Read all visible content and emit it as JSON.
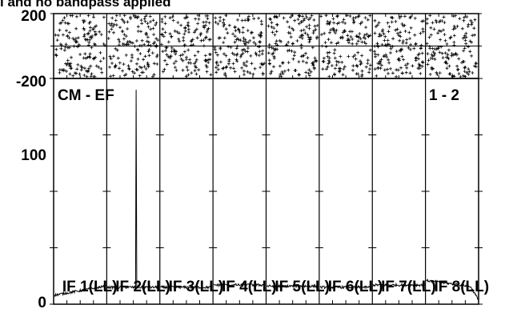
{
  "chart_data": {
    "type": "line",
    "title": "l and no bandpass applied",
    "baseline_label": "CM - EF",
    "subtitle_right": "1 - 2",
    "panel_labels": [
      "IF 1(LL)",
      "IF 2(LL)",
      "IF 3(LL)",
      "IF 4(LL)",
      "IF 5(LL)",
      "IF 6(LL)",
      "IF 7(LL)",
      "IF 8(LL)"
    ],
    "phase_axis": {
      "ticks": [
        "200",
        "-200"
      ],
      "ylim": [
        -200,
        200
      ]
    },
    "amplitude_axis": {
      "ticks": [
        "100",
        "0"
      ],
      "ylim": [
        0,
        200
      ]
    },
    "panels": 8,
    "channels_per_panel": 30,
    "series": [
      {
        "name": "IF 1(LL)",
        "amp_level": 12,
        "slope": 4,
        "spike": null,
        "edge_drop": 0
      },
      {
        "name": "IF 2(LL)",
        "amp_level": 15,
        "slope": 0,
        "spike": {
          "at": 0.55,
          "value": 190
        },
        "edge_drop": 0
      },
      {
        "name": "IF 3(LL)",
        "amp_level": 15,
        "slope": 0,
        "spike": null,
        "edge_drop": 0
      },
      {
        "name": "IF 4(LL)",
        "amp_level": 17,
        "slope": 0,
        "spike": null,
        "edge_drop": 0
      },
      {
        "name": "IF 5(LL)",
        "amp_level": 16,
        "slope": 0,
        "spike": null,
        "edge_drop": 0
      },
      {
        "name": "IF 6(LL)",
        "amp_level": 15,
        "slope": 0,
        "spike": null,
        "edge_drop": 0
      },
      {
        "name": "IF 7(LL)",
        "amp_level": 17,
        "slope": 0,
        "spike": null,
        "edge_drop": 0
      },
      {
        "name": "IF 8(LL)",
        "amp_level": 18,
        "slope": -3,
        "spike": null,
        "edge_drop": 10
      }
    ]
  }
}
